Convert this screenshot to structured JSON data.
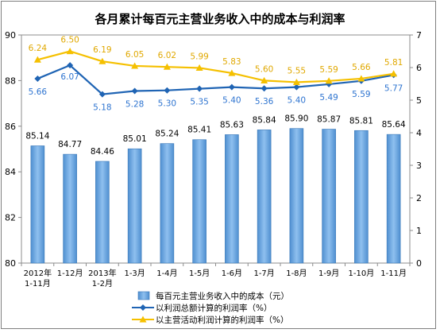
{
  "chart_data": {
    "type": "bar",
    "title": "各月累计每百元主营业务收入中的成本与利润率",
    "categories": [
      [
        "2012年",
        "1-11月"
      ],
      [
        "1-12月"
      ],
      [
        "2013年",
        "1-2月"
      ],
      [
        "1-3月"
      ],
      [
        "1-4月"
      ],
      [
        "1-5月"
      ],
      [
        "1-6月"
      ],
      [
        "1-7月"
      ],
      [
        "1-8月"
      ],
      [
        "1-9月"
      ],
      [
        "1-10月"
      ],
      [
        "1-11月"
      ]
    ],
    "series": [
      {
        "name": "每百元主营业务收入中的成本（元）",
        "type": "bar",
        "axis": "left",
        "color": "#5b9bd5",
        "values": [
          85.14,
          84.77,
          84.46,
          85.01,
          85.24,
          85.41,
          85.63,
          85.84,
          85.9,
          85.87,
          85.81,
          85.64
        ],
        "labels": [
          "85.14",
          "84.77",
          "84.46",
          "85.01",
          "85.24",
          "85.41",
          "85.63",
          "85.84",
          "85.90",
          "85.87",
          "85.81",
          "85.64"
        ]
      },
      {
        "name": "以利润总额计算的利润率（%）",
        "type": "line",
        "axis": "right",
        "color": "#1f64b4",
        "label_color": "#2e74d0",
        "marker": "diamond",
        "values": [
          5.66,
          6.07,
          5.18,
          5.28,
          5.3,
          5.35,
          5.4,
          5.36,
          5.4,
          5.49,
          5.59,
          5.77
        ],
        "labels": [
          "5.66",
          "6.07",
          "5.18",
          "5.28",
          "5.30",
          "5.35",
          "5.40",
          "5.36",
          "5.40",
          "5.49",
          "5.59",
          "5.77"
        ]
      },
      {
        "name": "以主营活动利润计算的利润率（%）",
        "type": "line",
        "axis": "right",
        "color": "#f5c000",
        "label_color": "#e0a800",
        "marker": "triangle",
        "values": [
          6.24,
          6.5,
          6.19,
          6.05,
          6.02,
          5.99,
          5.83,
          5.6,
          5.55,
          5.59,
          5.66,
          5.81
        ],
        "labels": [
          "6.24",
          "6.50",
          "6.19",
          "6.05",
          "6.02",
          "5.99",
          "5.83",
          "5.60",
          "5.55",
          "5.59",
          "5.66",
          "5.81"
        ]
      }
    ],
    "y_left": {
      "range": [
        80,
        90
      ],
      "ticks": [
        "80",
        "82",
        "84",
        "86",
        "88",
        "90"
      ]
    },
    "y_right": {
      "range": [
        0,
        7
      ],
      "ticks": [
        "0",
        "1",
        "2",
        "3",
        "4",
        "5",
        "6",
        "7"
      ]
    },
    "xlabel": "",
    "ylabel": "",
    "grid": false,
    "legend_position": "bottom-center"
  }
}
